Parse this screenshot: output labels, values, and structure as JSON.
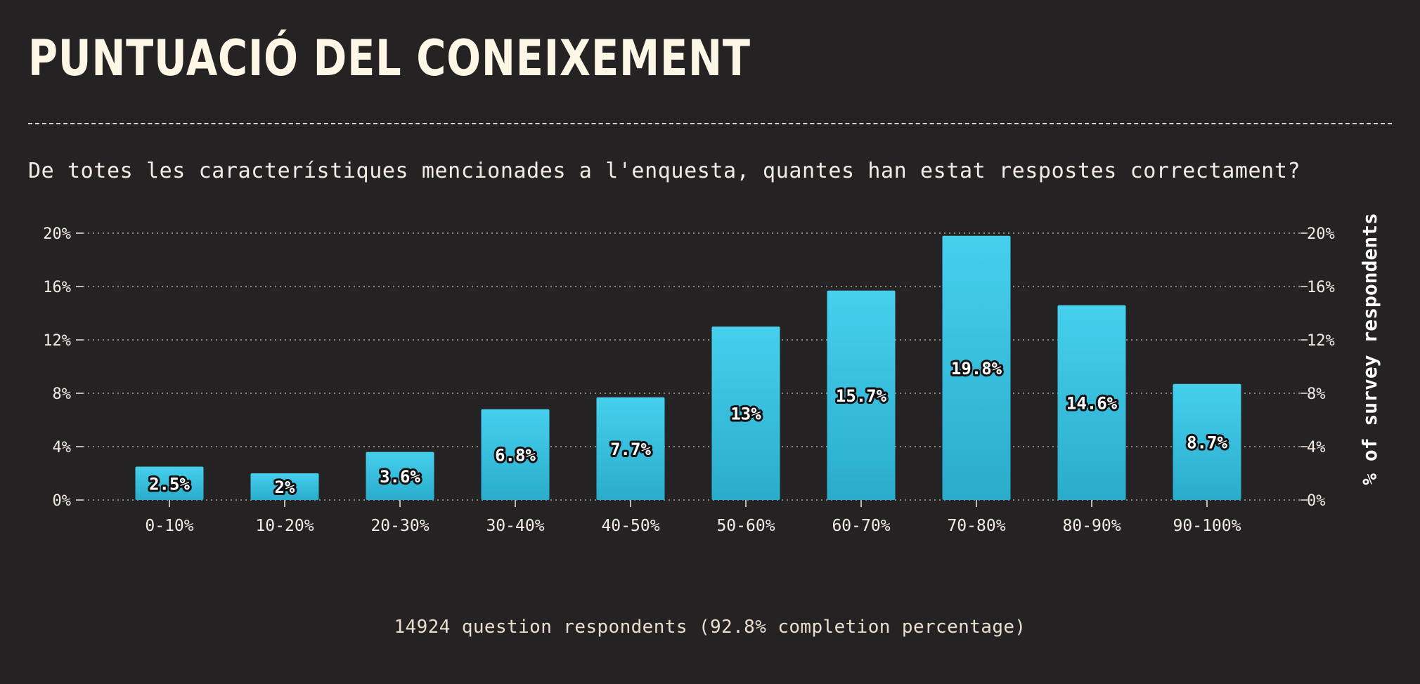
{
  "chart_data": {
    "type": "bar",
    "title": "PUNTUACIÓ DEL CONEIXEMENT",
    "subtitle": "De totes les característiques mencionades a l'enquesta, quantes han estat respostes correctament?",
    "categories": [
      "0-10%",
      "10-20%",
      "20-30%",
      "30-40%",
      "40-50%",
      "50-60%",
      "60-70%",
      "70-80%",
      "80-90%",
      "90-100%"
    ],
    "values": [
      2.5,
      2,
      3.6,
      6.8,
      7.7,
      13,
      15.7,
      19.8,
      14.6,
      8.7
    ],
    "value_labels": [
      "2.5%",
      "2%",
      "3.6%",
      "6.8%",
      "7.7%",
      "13%",
      "15.7%",
      "19.8%",
      "14.6%",
      "8.7%"
    ],
    "ylim": [
      0,
      20
    ],
    "yticks": [
      0,
      4,
      8,
      12,
      16,
      20
    ],
    "ytick_labels": [
      "0%",
      "4%",
      "8%",
      "12%",
      "16%",
      "20%"
    ],
    "ylabel": "% of survey respondents",
    "xlabel": "",
    "grid": true,
    "bar_color": "#3cc6e5",
    "footnote": "14924 question respondents (92.8% completion percentage)"
  }
}
